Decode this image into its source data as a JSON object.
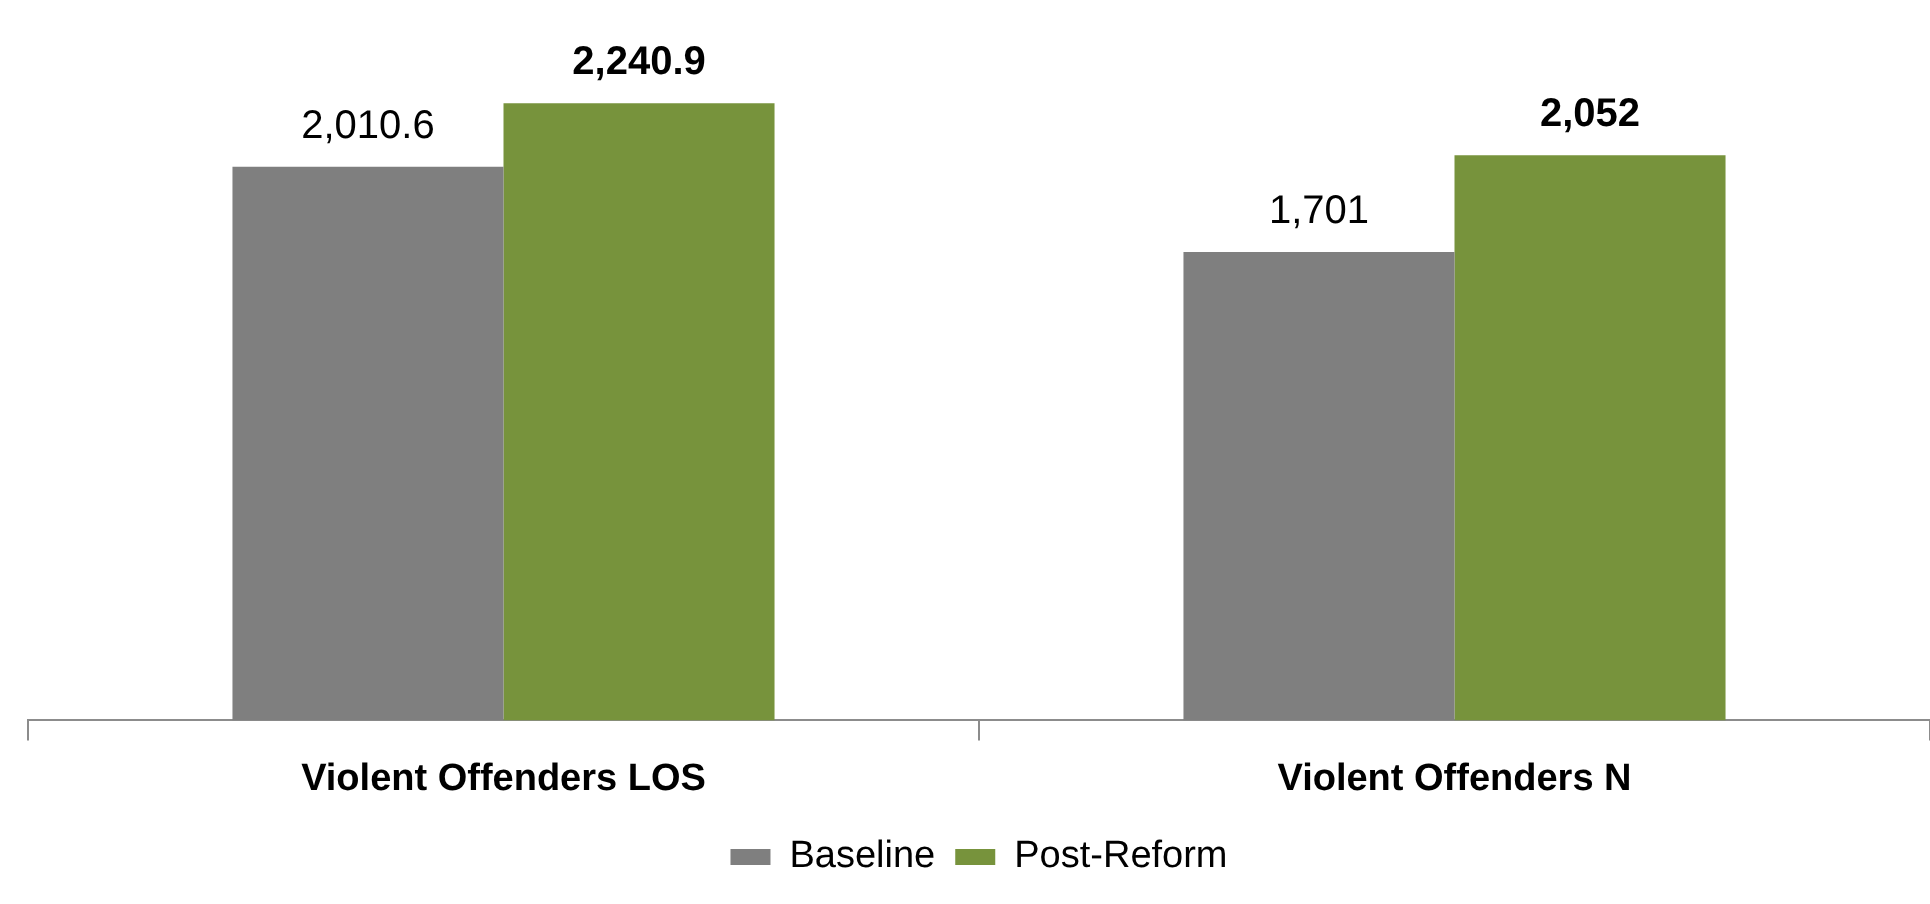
{
  "chart_data": {
    "type": "bar",
    "categories": [
      "Violent Offenders LOS",
      "Violent Offenders N"
    ],
    "series": [
      {
        "name": "Baseline",
        "color": "#7f7f7f",
        "values": [
          2010.6,
          1701
        ],
        "value_labels": [
          "2,010.6",
          "1,701"
        ]
      },
      {
        "name": "Post-Reform",
        "color": "#77933c",
        "values": [
          2240.9,
          2052
        ],
        "value_labels": [
          "2,240.9",
          "2,052"
        ]
      }
    ],
    "legend": "bottom",
    "grid": false
  }
}
